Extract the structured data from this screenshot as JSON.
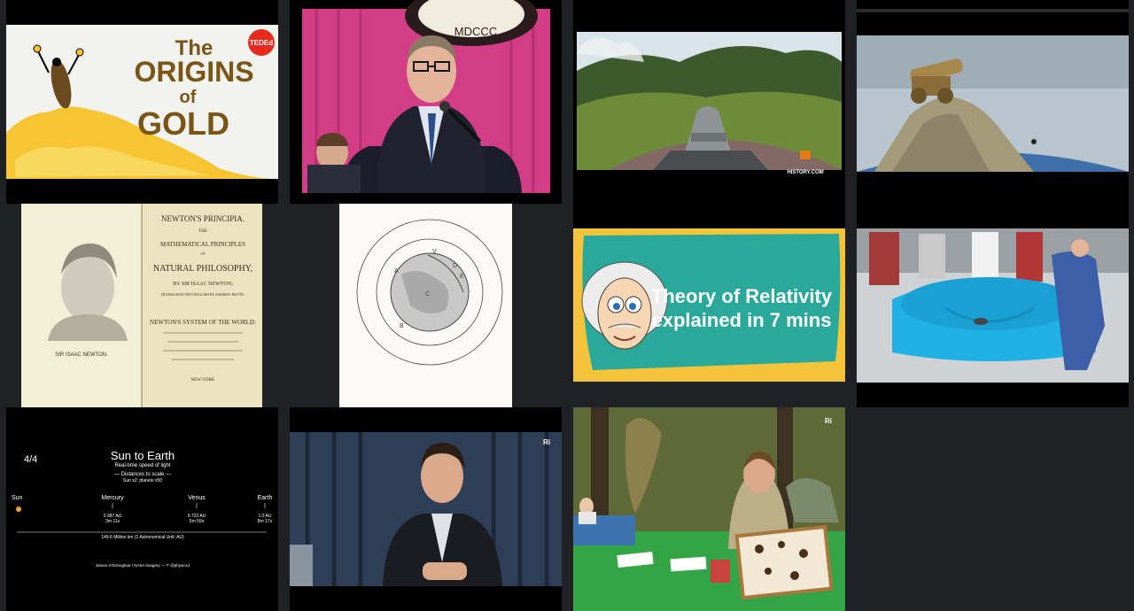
{
  "tiles": {
    "gold": {
      "title_line1": "The",
      "title_line2": "ORIGINS",
      "title_line3": "of",
      "title_line4": "GOLD",
      "badge": "TEDEd",
      "colors": {
        "bg": "#f2f2ee",
        "gold": "#f6c531",
        "title": "#7a5516",
        "badge": "#e62b1e"
      }
    },
    "lecture": {
      "seal_text": "MDCCC",
      "colors": {
        "curtain": "#d23d86",
        "suit": "#1b1e2a"
      }
    },
    "history_cannon": {
      "watermark": "HISTORY.COM",
      "colors": {
        "sky": "#d8e4ea",
        "grass": "#6e8b3a"
      }
    },
    "cannon_mountain": {
      "colors": {
        "bg": "#b9c5cc",
        "earth": "#3d6fa8",
        "rock": "#a49a7a"
      }
    },
    "principia": {
      "header": "NEWTON'S PRINCIPIA.",
      "line_the": "THE",
      "line_mathematical": "MATHEMATICAL PRINCIPLES",
      "line_of": "OF",
      "line_natural": "NATURAL PHILOSOPHY,",
      "line_by": "BY SIR ISAAC NEWTON;",
      "line_translated": "TRANSLATED INTO ENGLISH BY ANDREW MOTTE.",
      "line_system": "NEWTON'S SYSTEM OF THE WORLD:",
      "line_city": "NEW-YORK",
      "portrait_caption": "SIR ISAAC NEWTON.",
      "colors": {
        "paper": "#ebe2bf",
        "ink": "#3b2e20"
      }
    },
    "orbit_diagram": {
      "labels": [
        "V",
        "D",
        "E",
        "A",
        "C",
        "B"
      ],
      "colors": {
        "paper": "#fbfaf6",
        "ink": "#444444"
      }
    },
    "relativity": {
      "line1": "Theory of Relativity",
      "line2": "explained in 7 mins",
      "colors": {
        "frame": "#f3c43a",
        "panel": "#2aa89a"
      }
    },
    "gravity_demo": {
      "colors": {
        "fabric": "#1fb0e4",
        "floor": "#cfd2d4"
      }
    },
    "sun_earth": {
      "counter": "4/4",
      "title": "Sun to Earth",
      "subtitle": "Real-time speed of light",
      "note1": "— Distances to scale —",
      "note2": "Sun x2; planets x50",
      "bodies": [
        {
          "name": "Sun",
          "au": "",
          "time": ""
        },
        {
          "name": "Mercury",
          "au": "0.387 AU",
          "time": "3m 11s"
        },
        {
          "name": "Venus",
          "au": "0.723 AU",
          "time": "5m 59s"
        },
        {
          "name": "Earth",
          "au": "1.0 AU",
          "time": "8m 17s"
        }
      ],
      "scale_label": "149.6 Million km (1 Astronomical Unit; AU)",
      "credit": "James O'Donoghue / NASA imagery  —  T: @physicsJ"
    },
    "ri_lecture": {
      "watermark": "Ri"
    },
    "ri_insects": {
      "watermark": "Ri",
      "colors": {
        "table": "#35a446",
        "forest": "#4d5a2a"
      }
    }
  }
}
